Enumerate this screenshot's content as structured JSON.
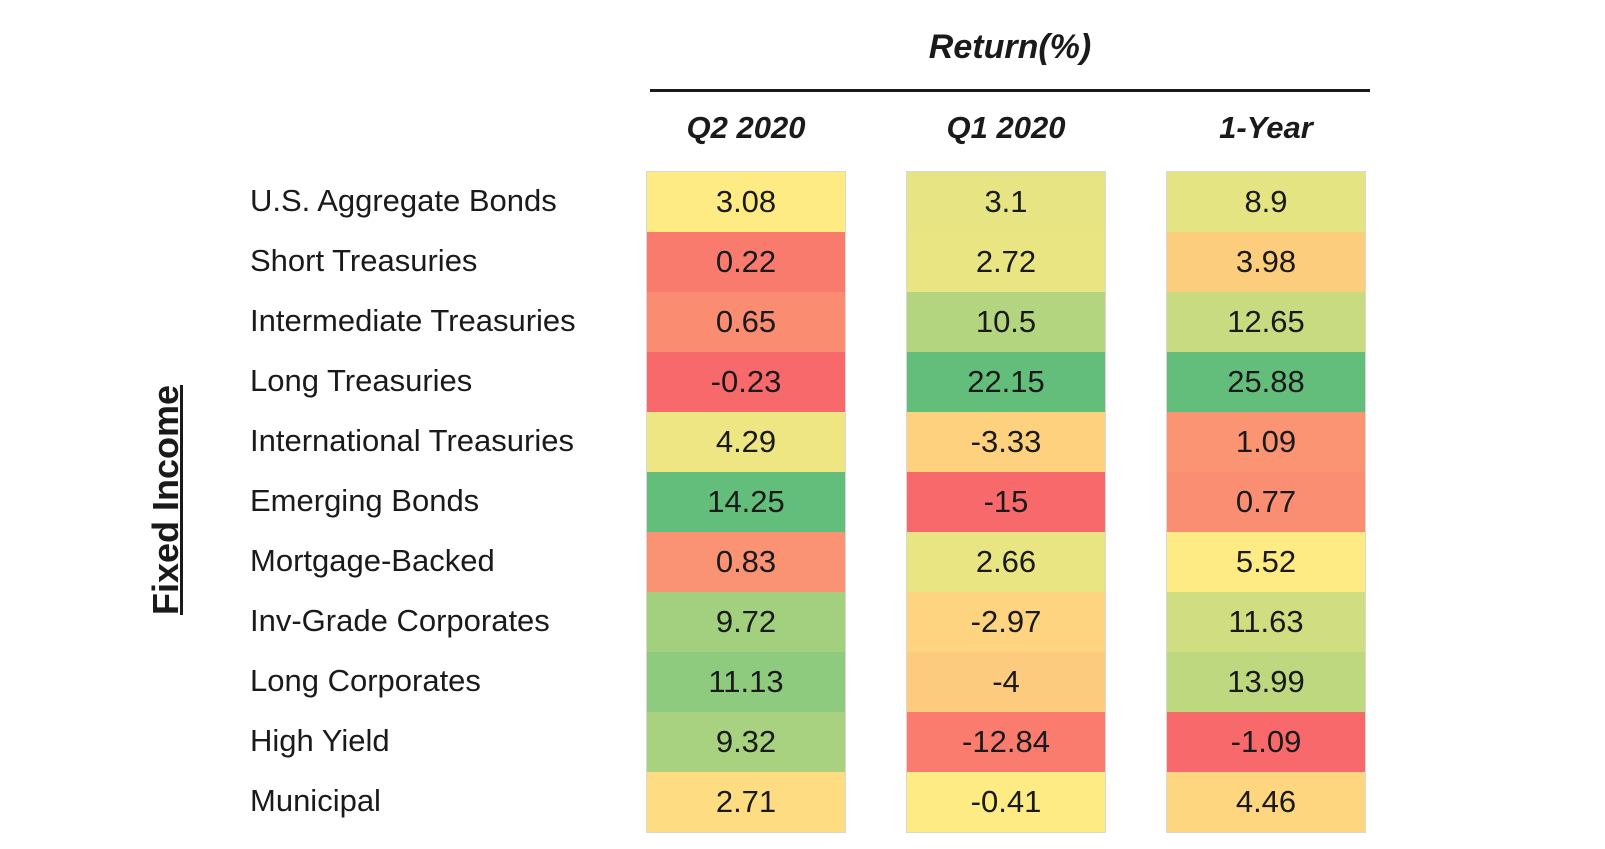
{
  "chart_data": {
    "type": "table",
    "super_header": "Return(%)",
    "side_label": "Fixed Income",
    "columns": [
      "Q2 2020",
      "Q1 2020",
      "1-Year"
    ],
    "rows": [
      {
        "label": "U.S. Aggregate Bonds",
        "values": [
          "3.08",
          "3.1",
          "8.9"
        ]
      },
      {
        "label": "Short Treasuries",
        "values": [
          "0.22",
          "2.72",
          "3.98"
        ]
      },
      {
        "label": "Intermediate Treasuries",
        "values": [
          "0.65",
          "10.5",
          "12.65"
        ]
      },
      {
        "label": "Long Treasuries",
        "values": [
          "-0.23",
          "22.15",
          "25.88"
        ]
      },
      {
        "label": "International Treasuries",
        "values": [
          "4.29",
          "-3.33",
          "1.09"
        ]
      },
      {
        "label": "Emerging Bonds",
        "values": [
          "14.25",
          "-15",
          "0.77"
        ]
      },
      {
        "label": "Mortgage-Backed",
        "values": [
          "0.83",
          "2.66",
          "5.52"
        ]
      },
      {
        "label": "Inv-Grade Corporates",
        "values": [
          "9.72",
          "-2.97",
          "11.63"
        ]
      },
      {
        "label": "Long Corporates",
        "values": [
          "11.13",
          "-4",
          "13.99"
        ]
      },
      {
        "label": "High Yield",
        "values": [
          "9.32",
          "-12.84",
          "-1.09"
        ]
      },
      {
        "label": "Municipal",
        "values": [
          "2.71",
          "-0.41",
          "4.46"
        ]
      }
    ],
    "color_scale": {
      "low": "#f8696b",
      "mid": "#ffeb84",
      "high": "#63be7b"
    }
  }
}
